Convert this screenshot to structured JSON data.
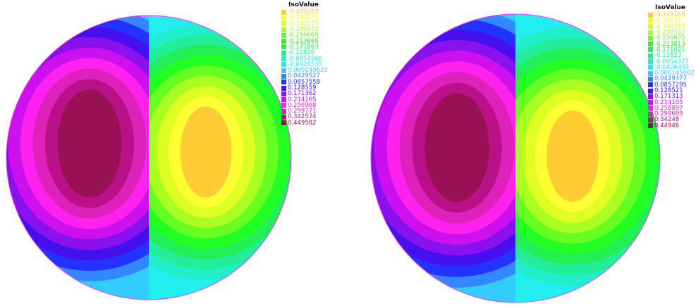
{
  "chart_data": [
    {
      "type": "heatmap",
      "legend_title": "IsoValue",
      "legend_position": "top-right",
      "levels": [
        "-0.449283",
        "-0.385076",
        "-0.342275",
        "-0.299472",
        "-0.256669",
        "-0.213866",
        "-0.171063",
        "-0.12826",
        "-0.0854566",
        "-0.0426535",
        "0.000149623",
        "0.0429527",
        "0.0857558",
        "0.128559",
        "0.171362",
        "0.214165",
        "0.256968",
        "0.299771",
        "0.342574",
        "0.449582"
      ]
    },
    {
      "type": "heatmap",
      "legend_title": "IsoValue",
      "legend_position": "top-right",
      "levels": [
        "-0.449168",
        "-0.38538",
        "-0.342189",
        "-0.299397",
        "-0.256605",
        "-0.213813",
        "-0.171021",
        "-0.12823",
        "-0.0854377",
        "-0.0426459",
        "0.000145902",
        "0.0429377",
        "0.0857295",
        "0.128521",
        "0.171313",
        "0.214105",
        "0.256897",
        "0.299689",
        "0.34248",
        "0.44946"
      ]
    }
  ],
  "palette": [
    "#ffcc33",
    "#ffff33",
    "#ddff22",
    "#aaff22",
    "#66ff22",
    "#22ff22",
    "#22ee55",
    "#22ee99",
    "#22eecc",
    "#22eeee",
    "#33ccff",
    "#3388ff",
    "#2233ff",
    "#4411ee",
    "#8811ee",
    "#cc11ee",
    "#ff22ee",
    "#dd22bb",
    "#bb1188",
    "#991155"
  ],
  "edge_colors": [
    "#ff33ff",
    "#33ff33"
  ]
}
